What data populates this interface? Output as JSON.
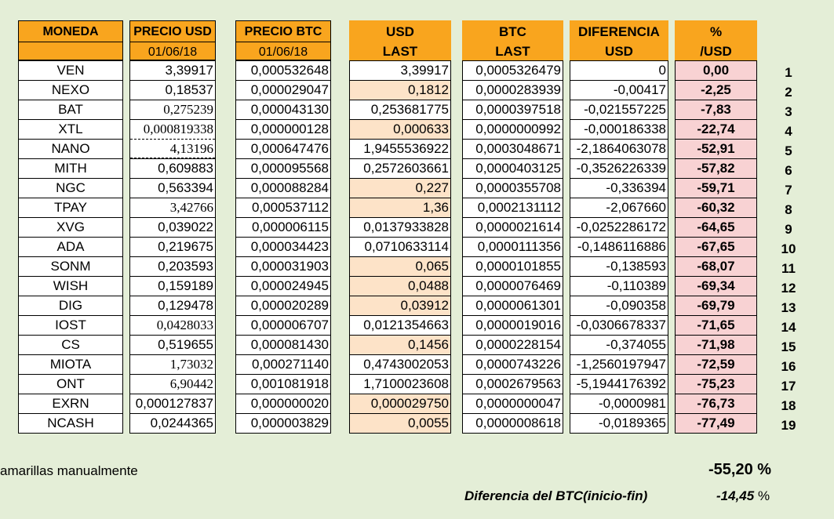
{
  "headers": {
    "moneda": "MONEDA",
    "precio_usd": "PRECIO USD",
    "precio_usd_date": "01/06/18",
    "precio_btc": "PRECIO BTC",
    "precio_btc_date": "01/06/18",
    "usd_last_1": "USD",
    "usd_last_2": "LAST",
    "btc_last_1": "BTC",
    "btc_last_2": "LAST",
    "diff_1": "DIFERENCIA",
    "diff_2": "USD",
    "pct_1": "%",
    "pct_2": "/USD"
  },
  "rows": [
    {
      "moneda": "VEN",
      "precio_usd": "3,39917",
      "precio_btc": "0,000532648",
      "usd_last": "3,39917",
      "btc_last": "0,0005326479",
      "diff": "0",
      "pct": "0,00",
      "idx": "1",
      "peach": false
    },
    {
      "moneda": "NEXO",
      "precio_usd": "0,18537",
      "precio_btc": "0,000029047",
      "usd_last": "0,1812",
      "btc_last": "0,0000283939",
      "diff": "-0,00417",
      "pct": "-2,25",
      "idx": "2",
      "peach": true
    },
    {
      "moneda": "BAT",
      "precio_usd": "0,275239",
      "precio_btc": "0,000043130",
      "usd_last": "0,253681775",
      "btc_last": "0,0000397518",
      "diff": "-0,021557225",
      "pct": "-7,83",
      "idx": "3",
      "peach": false
    },
    {
      "moneda": "XTL",
      "precio_usd": "0,000819338",
      "precio_btc": "0,000000128",
      "usd_last": "0,000633",
      "btc_last": "0,0000000992",
      "diff": "-0,000186338",
      "pct": "-22,74",
      "idx": "4",
      "peach": true
    },
    {
      "moneda": "NANO",
      "precio_usd": "4,13196",
      "precio_btc": "0,000647476",
      "usd_last": "1,9455536922",
      "btc_last": "0,0003048671",
      "diff": "-2,1864063078",
      "pct": "-52,91",
      "idx": "5",
      "peach": false
    },
    {
      "moneda": "MITH",
      "precio_usd": "0,609883",
      "precio_btc": "0,000095568",
      "usd_last": "0,2572603661",
      "btc_last": "0,0000403125",
      "diff": "-0,3526226339",
      "pct": "-57,82",
      "idx": "6",
      "peach": false
    },
    {
      "moneda": "NGC",
      "precio_usd": "0,563394",
      "precio_btc": "0,000088284",
      "usd_last": "0,227",
      "btc_last": "0,0000355708",
      "diff": "-0,336394",
      "pct": "-59,71",
      "idx": "7",
      "peach": true
    },
    {
      "moneda": "TPAY",
      "precio_usd": "3,42766",
      "precio_btc": "0,000537112",
      "usd_last": "1,36",
      "btc_last": "0,0002131112",
      "diff": "-2,067660",
      "pct": "-60,32",
      "idx": "8",
      "peach": true
    },
    {
      "moneda": "XVG",
      "precio_usd": "0,039022",
      "precio_btc": "0,000006115",
      "usd_last": "0,0137933828",
      "btc_last": "0,0000021614",
      "diff": "-0,0252286172",
      "pct": "-64,65",
      "idx": "9",
      "peach": false
    },
    {
      "moneda": "ADA",
      "precio_usd": "0,219675",
      "precio_btc": "0,000034423",
      "usd_last": "0,0710633114",
      "btc_last": "0,0000111356",
      "diff": "-0,1486116886",
      "pct": "-67,65",
      "idx": "10",
      "peach": false
    },
    {
      "moneda": "SONM",
      "precio_usd": "0,203593",
      "precio_btc": "0,000031903",
      "usd_last": "0,065",
      "btc_last": "0,0000101855",
      "diff": "-0,138593",
      "pct": "-68,07",
      "idx": "11",
      "peach": true
    },
    {
      "moneda": "WISH",
      "precio_usd": "0,159189",
      "precio_btc": "0,000024945",
      "usd_last": "0,0488",
      "btc_last": "0,0000076469",
      "diff": "-0,110389",
      "pct": "-69,34",
      "idx": "12",
      "peach": true
    },
    {
      "moneda": "DIG",
      "precio_usd": "0,129478",
      "precio_btc": "0,000020289",
      "usd_last": "0,03912",
      "btc_last": "0,0000061301",
      "diff": "-0,090358",
      "pct": "-69,79",
      "idx": "13",
      "peach": true
    },
    {
      "moneda": "IOST",
      "precio_usd": "0,0428033",
      "precio_btc": "0,000006707",
      "usd_last": "0,0121354663",
      "btc_last": "0,0000019016",
      "diff": "-0,0306678337",
      "pct": "-71,65",
      "idx": "14",
      "peach": false
    },
    {
      "moneda": "CS",
      "precio_usd": "0,519655",
      "precio_btc": "0,000081430",
      "usd_last": "0,1456",
      "btc_last": "0,0000228154",
      "diff": "-0,374055",
      "pct": "-71,98",
      "idx": "15",
      "peach": true
    },
    {
      "moneda": "MIOTA",
      "precio_usd": "1,73032",
      "precio_btc": "0,000271140",
      "usd_last": "0,4743002053",
      "btc_last": "0,0000743226",
      "diff": "-1,2560197947",
      "pct": "-72,59",
      "idx": "16",
      "peach": false
    },
    {
      "moneda": "ONT",
      "precio_usd": "6,90442",
      "precio_btc": "0,001081918",
      "usd_last": "1,7100023608",
      "btc_last": "0,0002679563",
      "diff": "-5,1944176392",
      "pct": "-75,23",
      "idx": "17",
      "peach": false
    },
    {
      "moneda": "EXRN",
      "precio_usd": "0,000127837",
      "precio_btc": "0,000000020",
      "usd_last": "0,000029750",
      "btc_last": "0,0000000047",
      "diff": "-0,0000981",
      "pct": "-76,73",
      "idx": "18",
      "peach": true
    },
    {
      "moneda": "NCASH",
      "precio_usd": "0,0244365",
      "precio_btc": "0,000003829",
      "usd_last": "0,0055",
      "btc_last": "0,0000008618",
      "diff": "-0,0189365",
      "pct": "-77,49",
      "idx": "19",
      "peach": true
    }
  ],
  "serif_precio_usd_rows": [
    2,
    3,
    4,
    7,
    13,
    15,
    16
  ],
  "footer": {
    "left_note": "amarillas manualmente",
    "total_value": "-55,20",
    "total_unit": "%",
    "btc_label": "Diferencia del BTC(inicio-fin)",
    "btc_value": "-14,45",
    "btc_unit": "%"
  },
  "colors": {
    "header_orange": "#f9a51e",
    "peach": "#fde3c8",
    "pink": "#f8d2d3",
    "background": "#e4eed7"
  }
}
